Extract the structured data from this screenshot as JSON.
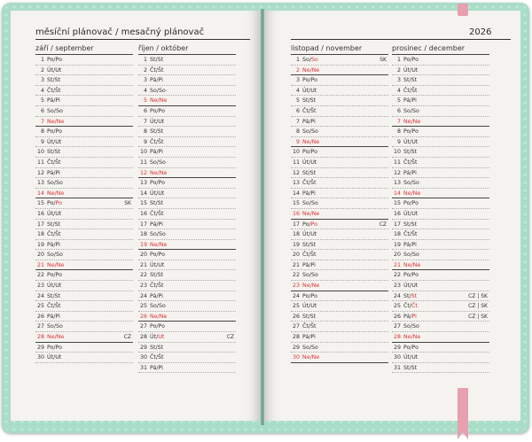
{
  "left_header": "měsíční plánovač / mesačný plánovač",
  "year": "2026",
  "colors": {
    "red": "#d9343a",
    "cover": "#a7dcc6",
    "ribbon": "#e7a0b0"
  },
  "months": [
    {
      "title": "září / september",
      "days": [
        {
          "n": "1",
          "d": "Po/Po"
        },
        {
          "n": "2",
          "d": "Út/Ut"
        },
        {
          "n": "3",
          "d": "St/St"
        },
        {
          "n": "4",
          "d": "Čt/Št"
        },
        {
          "n": "5",
          "d": "Pá/Pi"
        },
        {
          "n": "6",
          "d": "So/So"
        },
        {
          "n": "7",
          "d": "Ne/Ne",
          "red": true
        },
        {
          "n": "8",
          "d": "Po/Po"
        },
        {
          "n": "9",
          "d": "Út/Ut"
        },
        {
          "n": "10",
          "d": "St/St"
        },
        {
          "n": "11",
          "d": "Čt/Št"
        },
        {
          "n": "12",
          "d": "Pá/Pi"
        },
        {
          "n": "13",
          "d": "So/So"
        },
        {
          "n": "14",
          "d": "Ne/Ne",
          "red": true
        },
        {
          "n": "15",
          "d": "Po/",
          "dr": "Po",
          "tag": "SK"
        },
        {
          "n": "16",
          "d": "Út/Ut"
        },
        {
          "n": "17",
          "d": "St/St"
        },
        {
          "n": "18",
          "d": "Čt/Št"
        },
        {
          "n": "19",
          "d": "Pá/Pi"
        },
        {
          "n": "20",
          "d": "So/So"
        },
        {
          "n": "21",
          "d": "Ne/Ne",
          "red": true
        },
        {
          "n": "22",
          "d": "Po/Po"
        },
        {
          "n": "23",
          "d": "Út/Ut"
        },
        {
          "n": "24",
          "d": "St/St"
        },
        {
          "n": "25",
          "d": "Čt/Št"
        },
        {
          "n": "26",
          "d": "Pá/Pi"
        },
        {
          "n": "27",
          "d": "So/So"
        },
        {
          "n": "28",
          "d": "Ne/Ne",
          "red": true,
          "tag": "CZ"
        },
        {
          "n": "29",
          "d": "Po/Po"
        },
        {
          "n": "30",
          "d": "Út/Ut"
        }
      ]
    },
    {
      "title": "říjen / október",
      "days": [
        {
          "n": "1",
          "d": "St/St"
        },
        {
          "n": "2",
          "d": "Čt/Št"
        },
        {
          "n": "3",
          "d": "Pá/Pi"
        },
        {
          "n": "4",
          "d": "So/So"
        },
        {
          "n": "5",
          "d": "Ne/Ne",
          "red": true
        },
        {
          "n": "6",
          "d": "Po/Po"
        },
        {
          "n": "7",
          "d": "Út/Ut"
        },
        {
          "n": "8",
          "d": "St/St"
        },
        {
          "n": "9",
          "d": "Čt/Št"
        },
        {
          "n": "10",
          "d": "Pá/Pi"
        },
        {
          "n": "11",
          "d": "So/So"
        },
        {
          "n": "12",
          "d": "Ne/Ne",
          "red": true
        },
        {
          "n": "13",
          "d": "Po/Po"
        },
        {
          "n": "14",
          "d": "Út/Ut"
        },
        {
          "n": "15",
          "d": "St/St"
        },
        {
          "n": "16",
          "d": "Čt/Št"
        },
        {
          "n": "17",
          "d": "Pá/Pi"
        },
        {
          "n": "18",
          "d": "So/So"
        },
        {
          "n": "19",
          "d": "Ne/Ne",
          "red": true
        },
        {
          "n": "20",
          "d": "Po/Po"
        },
        {
          "n": "21",
          "d": "Út/Ut"
        },
        {
          "n": "22",
          "d": "St/St"
        },
        {
          "n": "23",
          "d": "Čt/Št"
        },
        {
          "n": "24",
          "d": "Pá/Pi"
        },
        {
          "n": "25",
          "d": "So/So"
        },
        {
          "n": "26",
          "d": "Ne/Ne",
          "red": true
        },
        {
          "n": "27",
          "d": "Po/Po"
        },
        {
          "n": "28",
          "d": "Út/",
          "dr": "Ut",
          "tag": "CZ"
        },
        {
          "n": "29",
          "d": "St/St"
        },
        {
          "n": "30",
          "d": "Čt/Št"
        },
        {
          "n": "31",
          "d": "Pá/Pi"
        }
      ]
    },
    {
      "title": "listopad / november",
      "days": [
        {
          "n": "1",
          "d": "So/",
          "dr": "So",
          "tag": "SK"
        },
        {
          "n": "2",
          "d": "Ne/Ne",
          "red": true
        },
        {
          "n": "3",
          "d": "Po/Po"
        },
        {
          "n": "4",
          "d": "Út/Ut"
        },
        {
          "n": "5",
          "d": "St/St"
        },
        {
          "n": "6",
          "d": "Čt/Št"
        },
        {
          "n": "7",
          "d": "Pá/Pi"
        },
        {
          "n": "8",
          "d": "So/So"
        },
        {
          "n": "9",
          "d": "Ne/Ne",
          "red": true
        },
        {
          "n": "10",
          "d": "Po/Po"
        },
        {
          "n": "11",
          "d": "Út/Ut"
        },
        {
          "n": "12",
          "d": "St/St"
        },
        {
          "n": "13",
          "d": "Čt/Št"
        },
        {
          "n": "14",
          "d": "Pá/Pi"
        },
        {
          "n": "15",
          "d": "So/So"
        },
        {
          "n": "16",
          "d": "Ne/Ne",
          "red": true
        },
        {
          "n": "17",
          "d": "Po/",
          "dr": "Po",
          "tag": "CZ"
        },
        {
          "n": "18",
          "d": "Út/Ut"
        },
        {
          "n": "19",
          "d": "St/St"
        },
        {
          "n": "20",
          "d": "Čt/Št"
        },
        {
          "n": "21",
          "d": "Pá/Pi"
        },
        {
          "n": "22",
          "d": "So/So"
        },
        {
          "n": "23",
          "d": "Ne/Ne",
          "red": true
        },
        {
          "n": "24",
          "d": "Po/Po"
        },
        {
          "n": "25",
          "d": "Út/Ut"
        },
        {
          "n": "26",
          "d": "St/St"
        },
        {
          "n": "27",
          "d": "Čt/Št"
        },
        {
          "n": "28",
          "d": "Pá/Pi"
        },
        {
          "n": "29",
          "d": "So/So"
        },
        {
          "n": "30",
          "d": "Ne/Ne",
          "red": true
        }
      ]
    },
    {
      "title": "prosinec / december",
      "days": [
        {
          "n": "1",
          "d": "Po/Po"
        },
        {
          "n": "2",
          "d": "Út/Ut"
        },
        {
          "n": "3",
          "d": "St/St"
        },
        {
          "n": "4",
          "d": "Čt/Št"
        },
        {
          "n": "5",
          "d": "Pá/Pi"
        },
        {
          "n": "6",
          "d": "So/So"
        },
        {
          "n": "7",
          "d": "Ne/Ne",
          "red": true
        },
        {
          "n": "8",
          "d": "Po/Po"
        },
        {
          "n": "9",
          "d": "Út/Ut"
        },
        {
          "n": "10",
          "d": "St/St"
        },
        {
          "n": "11",
          "d": "Čt/Št"
        },
        {
          "n": "12",
          "d": "Pá/Pi"
        },
        {
          "n": "13",
          "d": "So/So"
        },
        {
          "n": "14",
          "d": "Ne/Ne",
          "red": true
        },
        {
          "n": "15",
          "d": "Po/Po"
        },
        {
          "n": "16",
          "d": "Út/Ut"
        },
        {
          "n": "17",
          "d": "St/St"
        },
        {
          "n": "18",
          "d": "Čt/Št"
        },
        {
          "n": "19",
          "d": "Pá/Pi"
        },
        {
          "n": "20",
          "d": "So/So"
        },
        {
          "n": "21",
          "d": "Ne/Ne",
          "red": true
        },
        {
          "n": "22",
          "d": "Po/Po"
        },
        {
          "n": "23",
          "d": "Út/Ut"
        },
        {
          "n": "24",
          "d": "St/",
          "dr": "St",
          "tag": "CZ | SK"
        },
        {
          "n": "25",
          "d": "Čt/",
          "dr": "Čt",
          "tag": "CZ | SK"
        },
        {
          "n": "26",
          "d": "Pá/",
          "dr": "Pi",
          "tag": "CZ | SK"
        },
        {
          "n": "27",
          "d": "So/So"
        },
        {
          "n": "28",
          "d": "Ne/Ne",
          "red": true
        },
        {
          "n": "29",
          "d": "Po/Po"
        },
        {
          "n": "30",
          "d": "Út/Ut"
        },
        {
          "n": "31",
          "d": "St/St"
        }
      ]
    }
  ]
}
